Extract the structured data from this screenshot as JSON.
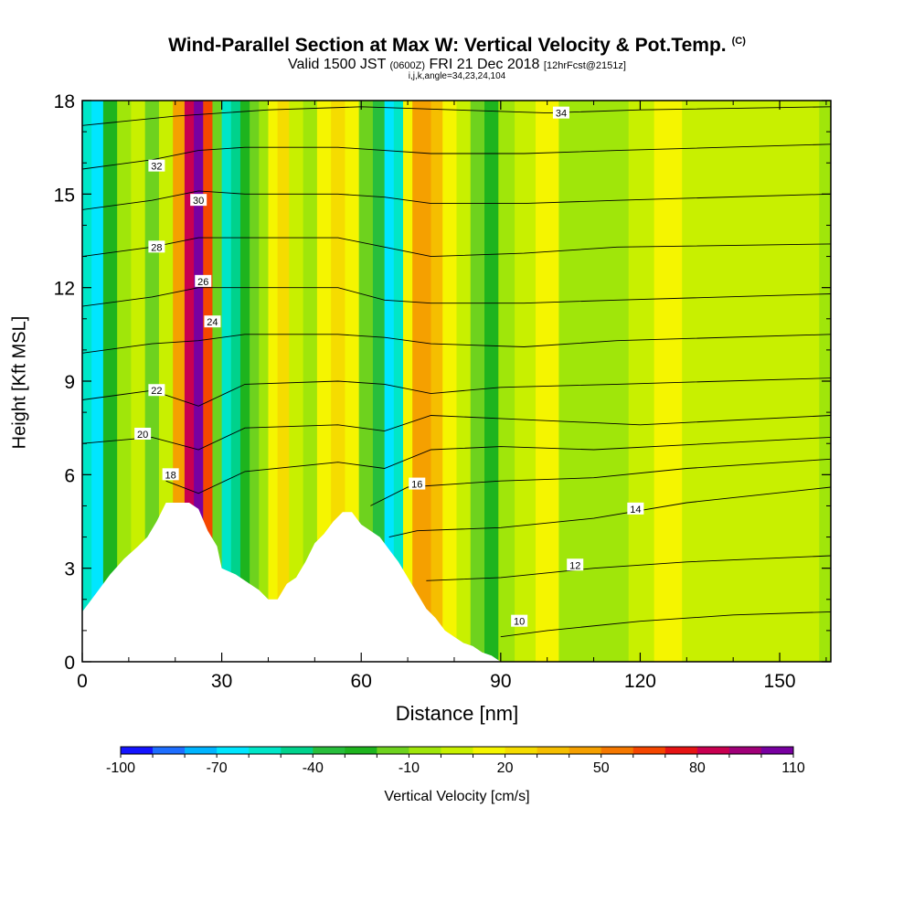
{
  "header": {
    "title": "Wind-Parallel Section at Max W: Vertical Velocity & Pot.Temp.",
    "title_tag": "(C)",
    "valid_prefix": "Valid 1500 JST",
    "valid_utc": "(0600Z)",
    "valid_date": "FRI 21 Dec 2018",
    "forecast": "[12hrFcst@2151z]",
    "indices": "i,j,k,angle=34,23,24,104"
  },
  "colorbar": {
    "title": "Vertical Velocity [cm/s]",
    "tick_labels": [
      "-100",
      "-70",
      "-40",
      "-10",
      "20",
      "50",
      "80",
      "110"
    ],
    "colors": [
      "#1414ff",
      "#1e6eff",
      "#00b4ff",
      "#00e6ff",
      "#00e6c8",
      "#00d28c",
      "#28be3c",
      "#1eb41e",
      "#6ed21e",
      "#a0e60a",
      "#c8f000",
      "#f5f500",
      "#f5dc00",
      "#f5be00",
      "#f5a000",
      "#f57800",
      "#f54600",
      "#e61414",
      "#c80050",
      "#a00078",
      "#7800a0"
    ]
  },
  "chart_data": {
    "type": "heatmap",
    "title": "Wind-Parallel Section at Max W: Vertical Velocity & Pot.Temp.",
    "xlabel": "Distance [nm]",
    "ylabel": "Height [Kft MSL]",
    "xlim": [
      0,
      161
    ],
    "ylim": [
      0,
      18
    ],
    "x_ticks": [
      0,
      30,
      60,
      90,
      120,
      150
    ],
    "y_ticks": [
      0,
      3,
      6,
      9,
      12,
      15,
      18
    ],
    "colorbar_range": [
      -100,
      110
    ],
    "terrain": [
      [
        0,
        1.6
      ],
      [
        3,
        2.2
      ],
      [
        6,
        2.8
      ],
      [
        9,
        3.3
      ],
      [
        12,
        3.7
      ],
      [
        14,
        4.0
      ],
      [
        16,
        4.5
      ],
      [
        18,
        5.1
      ],
      [
        20,
        5.1
      ],
      [
        23,
        5.1
      ],
      [
        25,
        4.9
      ],
      [
        27,
        4.2
      ],
      [
        29,
        3.7
      ],
      [
        30,
        3.0
      ],
      [
        33,
        2.8
      ],
      [
        36,
        2.5
      ],
      [
        38,
        2.3
      ],
      [
        40,
        2.0
      ],
      [
        42,
        2.0
      ],
      [
        44,
        2.5
      ],
      [
        46,
        2.7
      ],
      [
        48,
        3.2
      ],
      [
        50,
        3.8
      ],
      [
        52,
        4.1
      ],
      [
        54,
        4.5
      ],
      [
        56,
        4.8
      ],
      [
        58,
        4.8
      ],
      [
        60,
        4.4
      ],
      [
        62,
        4.2
      ],
      [
        64,
        4.0
      ],
      [
        66,
        3.6
      ],
      [
        68,
        3.2
      ],
      [
        70,
        2.7
      ],
      [
        72,
        2.2
      ],
      [
        74,
        1.7
      ],
      [
        76,
        1.4
      ],
      [
        78,
        1.0
      ],
      [
        80,
        0.8
      ],
      [
        82,
        0.6
      ],
      [
        84,
        0.5
      ],
      [
        86,
        0.3
      ],
      [
        88,
        0.2
      ],
      [
        90,
        0.0
      ],
      [
        161,
        0.0
      ]
    ],
    "velocity_columns": [
      {
        "x": 1,
        "w": -55,
        "ztop": 18
      },
      {
        "x": 3,
        "w": -65,
        "ztop": 18
      },
      {
        "x": 6,
        "w": -25,
        "ztop": 18
      },
      {
        "x": 9,
        "w": -5,
        "ztop": 18
      },
      {
        "x": 12,
        "w": 5,
        "ztop": 18
      },
      {
        "x": 15,
        "w": -15,
        "ztop": 18
      },
      {
        "x": 18,
        "w": 0,
        "ztop": 18
      },
      {
        "x": 21,
        "w": 45,
        "ztop": 18
      },
      {
        "x": 23,
        "w": 85,
        "ztop": 18
      },
      {
        "x": 25,
        "w": 100,
        "ztop": 18
      },
      {
        "x": 27,
        "w": 60,
        "ztop": 18
      },
      {
        "x": 29,
        "w": -20,
        "ztop": 18
      },
      {
        "x": 31,
        "w": -60,
        "ztop": 18
      },
      {
        "x": 33,
        "w": -45,
        "ztop": 18
      },
      {
        "x": 35,
        "w": -30,
        "ztop": 18
      },
      {
        "x": 37,
        "w": -15,
        "ztop": 18
      },
      {
        "x": 39,
        "w": -5,
        "ztop": 18
      },
      {
        "x": 41,
        "w": 10,
        "ztop": 18
      },
      {
        "x": 43,
        "w": 20,
        "ztop": 18
      },
      {
        "x": 46,
        "w": 5,
        "ztop": 18
      },
      {
        "x": 49,
        "w": -10,
        "ztop": 18
      },
      {
        "x": 52,
        "w": 15,
        "ztop": 18
      },
      {
        "x": 55,
        "w": 25,
        "ztop": 18
      },
      {
        "x": 58,
        "w": 10,
        "ztop": 18
      },
      {
        "x": 61,
        "w": -20,
        "ztop": 18
      },
      {
        "x": 64,
        "w": -40,
        "ztop": 18
      },
      {
        "x": 66,
        "w": -70,
        "ztop": 18
      },
      {
        "x": 68,
        "w": -55,
        "ztop": 18
      },
      {
        "x": 70,
        "w": 15,
        "ztop": 18
      },
      {
        "x": 72,
        "w": 40,
        "ztop": 18
      },
      {
        "x": 74,
        "w": 45,
        "ztop": 18
      },
      {
        "x": 76,
        "w": 30,
        "ztop": 18
      },
      {
        "x": 79,
        "w": 15,
        "ztop": 18
      },
      {
        "x": 82,
        "w": 0,
        "ztop": 18
      },
      {
        "x": 85,
        "w": -15,
        "ztop": 18
      },
      {
        "x": 88,
        "w": -25,
        "ztop": 18
      },
      {
        "x": 91,
        "w": -10,
        "ztop": 18
      },
      {
        "x": 95,
        "w": 5,
        "ztop": 18
      },
      {
        "x": 100,
        "w": 10,
        "ztop": 18
      },
      {
        "x": 105,
        "w": -5,
        "ztop": 18
      },
      {
        "x": 110,
        "w": -10,
        "ztop": 18
      },
      {
        "x": 115,
        "w": -5,
        "ztop": 18
      },
      {
        "x": 120,
        "w": 5,
        "ztop": 18
      },
      {
        "x": 126,
        "w": 10,
        "ztop": 18
      },
      {
        "x": 132,
        "w": 5,
        "ztop": 18
      },
      {
        "x": 140,
        "w": 8,
        "ztop": 18
      },
      {
        "x": 148,
        "w": 5,
        "ztop": 18
      },
      {
        "x": 156,
        "w": 0,
        "ztop": 18
      },
      {
        "x": 161,
        "w": -5,
        "ztop": 18
      }
    ],
    "isentropes": [
      {
        "theta": 10,
        "points": [
          [
            90,
            0.8
          ],
          [
            100,
            1.0
          ],
          [
            120,
            1.3
          ],
          [
            140,
            1.5
          ],
          [
            161,
            1.6
          ]
        ],
        "label_at": [
          94,
          1.3
        ]
      },
      {
        "theta": 12,
        "points": [
          [
            74,
            2.6
          ],
          [
            90,
            2.7
          ],
          [
            110,
            3.0
          ],
          [
            130,
            3.2
          ],
          [
            161,
            3.4
          ]
        ],
        "label_at": [
          106,
          3.1
        ]
      },
      {
        "theta": 14,
        "points": [
          [
            66,
            4.0
          ],
          [
            72,
            4.2
          ],
          [
            90,
            4.3
          ],
          [
            110,
            4.6
          ],
          [
            130,
            5.1
          ],
          [
            161,
            5.6
          ]
        ],
        "label_at": [
          119,
          4.9
        ]
      },
      {
        "theta": 16,
        "points": [
          [
            62,
            5.0
          ],
          [
            70,
            5.6
          ],
          [
            90,
            5.8
          ],
          [
            110,
            5.9
          ],
          [
            130,
            6.2
          ],
          [
            161,
            6.5
          ]
        ],
        "label_at": [
          72,
          5.7
        ]
      },
      {
        "theta": 18,
        "points": [
          [
            18,
            5.8
          ],
          [
            25,
            5.4
          ],
          [
            35,
            6.1
          ],
          [
            55,
            6.4
          ],
          [
            65,
            6.2
          ],
          [
            75,
            6.8
          ],
          [
            90,
            6.9
          ],
          [
            110,
            6.8
          ],
          [
            161,
            7.2
          ]
        ],
        "label_at": [
          19,
          6.0
        ]
      },
      {
        "theta": 20,
        "points": [
          [
            0,
            7.0
          ],
          [
            15,
            7.2
          ],
          [
            25,
            6.8
          ],
          [
            35,
            7.5
          ],
          [
            55,
            7.6
          ],
          [
            65,
            7.4
          ],
          [
            75,
            7.9
          ],
          [
            90,
            7.8
          ],
          [
            120,
            7.6
          ],
          [
            161,
            7.9
          ]
        ],
        "label_at": [
          13,
          7.3
        ]
      },
      {
        "theta": 22,
        "points": [
          [
            0,
            8.4
          ],
          [
            15,
            8.7
          ],
          [
            25,
            8.2
          ],
          [
            35,
            8.9
          ],
          [
            55,
            9.0
          ],
          [
            65,
            8.9
          ],
          [
            75,
            8.6
          ],
          [
            90,
            8.8
          ],
          [
            115,
            8.9
          ],
          [
            161,
            9.1
          ]
        ],
        "label_at": [
          16,
          8.7
        ]
      },
      {
        "theta": 24,
        "points": [
          [
            0,
            9.9
          ],
          [
            15,
            10.2
          ],
          [
            25,
            10.3
          ],
          [
            35,
            10.5
          ],
          [
            55,
            10.5
          ],
          [
            65,
            10.4
          ],
          [
            75,
            10.2
          ],
          [
            95,
            10.1
          ],
          [
            115,
            10.3
          ],
          [
            161,
            10.5
          ]
        ],
        "label_at": [
          28,
          10.9
        ]
      },
      {
        "theta": 26,
        "points": [
          [
            0,
            11.4
          ],
          [
            15,
            11.7
          ],
          [
            25,
            12.0
          ],
          [
            35,
            12.0
          ],
          [
            55,
            12.0
          ],
          [
            65,
            11.6
          ],
          [
            75,
            11.5
          ],
          [
            95,
            11.5
          ],
          [
            115,
            11.6
          ],
          [
            161,
            11.8
          ]
        ],
        "label_at": [
          26,
          12.2
        ]
      },
      {
        "theta": 28,
        "points": [
          [
            0,
            13.0
          ],
          [
            15,
            13.3
          ],
          [
            25,
            13.6
          ],
          [
            35,
            13.6
          ],
          [
            55,
            13.6
          ],
          [
            65,
            13.3
          ],
          [
            75,
            13.0
          ],
          [
            95,
            13.1
          ],
          [
            115,
            13.3
          ],
          [
            161,
            13.4
          ]
        ],
        "label_at": [
          16,
          13.3
        ]
      },
      {
        "theta": 30,
        "points": [
          [
            0,
            14.5
          ],
          [
            15,
            14.8
          ],
          [
            25,
            15.1
          ],
          [
            35,
            15.0
          ],
          [
            55,
            15.0
          ],
          [
            65,
            14.9
          ],
          [
            75,
            14.7
          ],
          [
            95,
            14.7
          ],
          [
            115,
            14.8
          ],
          [
            161,
            15.0
          ]
        ],
        "label_at": [
          25,
          14.8
        ]
      },
      {
        "theta": 32,
        "points": [
          [
            0,
            15.8
          ],
          [
            15,
            16.1
          ],
          [
            25,
            16.4
          ],
          [
            35,
            16.5
          ],
          [
            55,
            16.5
          ],
          [
            65,
            16.4
          ],
          [
            75,
            16.3
          ],
          [
            95,
            16.3
          ],
          [
            115,
            16.4
          ],
          [
            161,
            16.6
          ]
        ],
        "label_at": [
          16,
          15.9
        ]
      },
      {
        "theta": 34,
        "points": [
          [
            0,
            17.2
          ],
          [
            20,
            17.5
          ],
          [
            40,
            17.7
          ],
          [
            60,
            17.8
          ],
          [
            80,
            17.7
          ],
          [
            100,
            17.6
          ],
          [
            120,
            17.7
          ],
          [
            161,
            17.8
          ]
        ],
        "label_at": [
          103,
          17.6
        ]
      }
    ]
  }
}
